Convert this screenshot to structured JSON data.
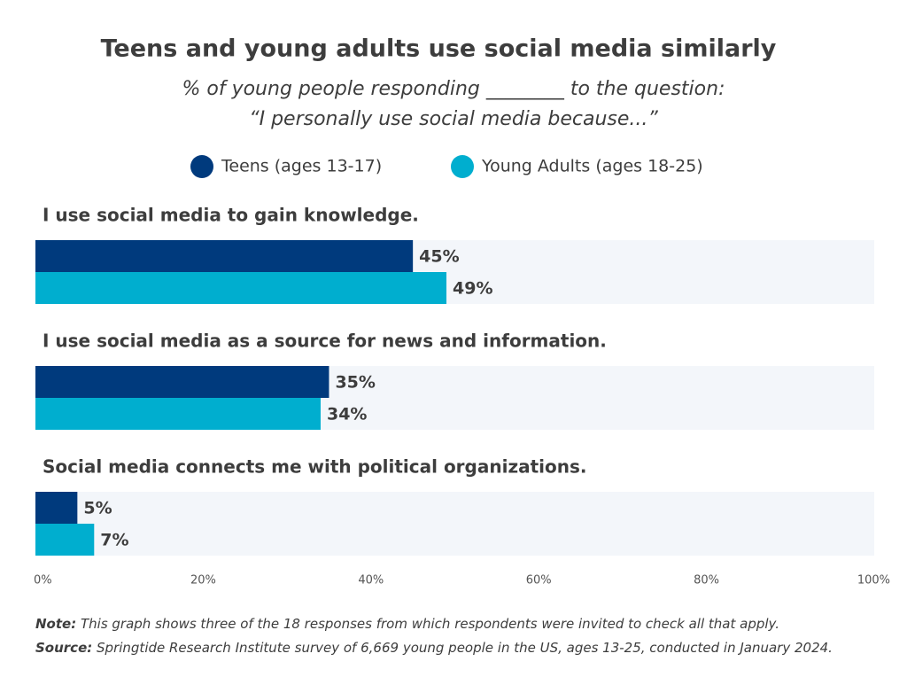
{
  "chart_data": {
    "type": "bar",
    "orientation": "horizontal",
    "title": "Teens and young adults use social media similarly",
    "subtitle": [
      "% of young people responding ________ to the question:",
      "“I personally use social media because...”"
    ],
    "categories": [
      "I use social media to gain knowledge.",
      "I use social media as a source for news and information.",
      "Social media connects me with political organizations."
    ],
    "series": [
      {
        "name": "Teens (ages 13-17)",
        "color": "#003a7d",
        "values": [
          45,
          35,
          5
        ],
        "value_labels": [
          "45%",
          "35%",
          "5%"
        ]
      },
      {
        "name": "Young Adults (ages 18-25)",
        "color": "#00aecf",
        "values": [
          49,
          34,
          7
        ],
        "value_labels": [
          "49%",
          "34%",
          "7%"
        ]
      }
    ],
    "xlim": [
      0,
      100
    ],
    "xticks": [
      {
        "value": 0,
        "label": "0%"
      },
      {
        "value": 20,
        "label": "20%"
      },
      {
        "value": 40,
        "label": "40%"
      },
      {
        "value": 60,
        "label": "60%"
      },
      {
        "value": 80,
        "label": "80%"
      },
      {
        "value": 100,
        "label": "100%"
      }
    ],
    "track_color": "#f3f6fa",
    "legend": "top",
    "note": {
      "label": "Note:",
      "text": "This graph shows three of the 18 responses from which respondents were invited to check all that apply."
    },
    "source": {
      "label": "Source:",
      "text": "Springtide Research Institute survey of 6,669 young people in the US, ages 13-25, conducted in January 2024."
    }
  }
}
